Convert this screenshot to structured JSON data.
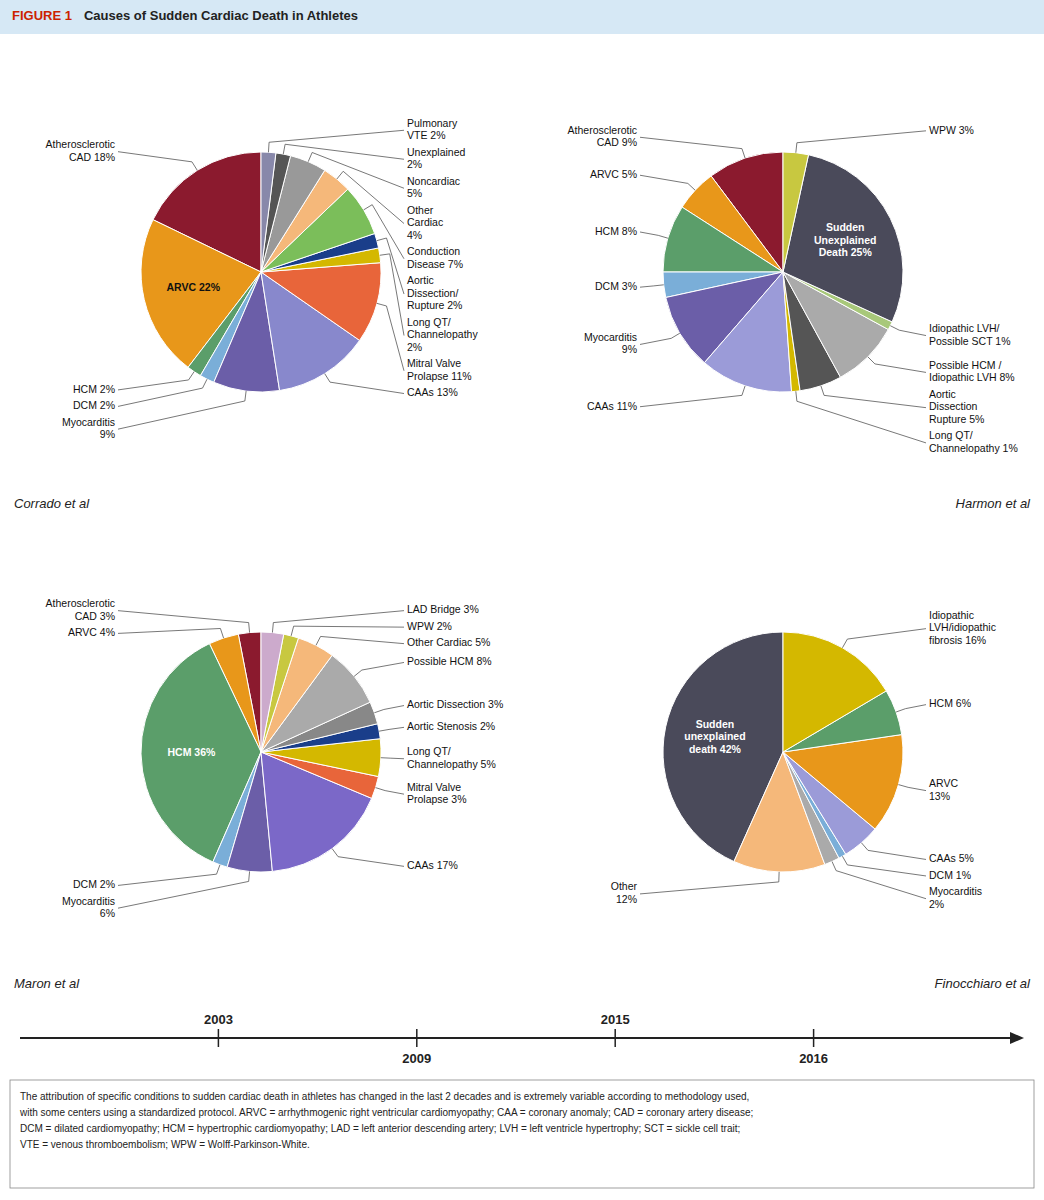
{
  "title": "FIGURE 1",
  "subtitle": "Causes of Sudden Cardiac Death in Athletes",
  "annotations": [
    "The attribution of specific conditions to sudden cardiac death in athletes has changed in the last 2 decades and is extremely variable according to methodology used,\nwith some centers using a standardized protocol. ARVC = arrhythmogenic right ventricular cardiomyopathy; CAA = coronary anomaly; CAD = coronary artery disease;\nDCM = dilated cardiomyopathy; HCM = hypertrophic cardiomyopathy; LAD = left anterior descending artery; LVH = left ventricle hypertrophy; SCT = sickle cell trait;\nVTE = venous thromboembolism; WPW = Wolff-Parkinson-White."
  ],
  "chart_data": [
    {
      "type": "pie",
      "title": "Corrado et al",
      "annotations": [
        "2003"
      ],
      "data_labels": true,
      "values": [
        18,
        22,
        2,
        2,
        9,
        13,
        11,
        2,
        2,
        7,
        4,
        5,
        2,
        2
      ],
      "value_labels": [
        "Atherosclerotic\nCAD 18%",
        "ARVC 22%",
        "HCM 2%",
        "DCM 2%",
        "Myocarditis\n9%",
        "CAAs 13%",
        "Mitral Valve\nProlapse 11%",
        "Long QT/\nChannelopathy\n2%",
        "Aortic\nDissection/\nRupture 2%",
        "Conduction\nDisease 7%",
        "Other\nCardiac\n4%",
        "Noncardiac\n5%",
        "Unexplained\n2%",
        "Pulmonary\nVTE 2%"
      ],
      "colors": [
        "#8B1A2E",
        "#E8971A",
        "#5B9E6A",
        "#7AAED8",
        "#6B5EA8",
        "#8888CC",
        "#E8653A",
        "#D4B800",
        "#1A3E8A",
        "#7BBE5A",
        "#F5B87A",
        "#999999",
        "#555555",
        "#8888AA"
      ]
    },
    {
      "type": "pie",
      "title": "Harmon et al",
      "annotations": [
        "2015"
      ],
      "data_labels": true,
      "values": [
        9,
        5,
        8,
        3,
        9,
        11,
        1,
        5,
        8,
        1,
        25,
        3
      ],
      "value_labels": [
        "Atherosclerotic\nCAD 9%",
        "ARVC 5%",
        "HCM 8%",
        "DCM 3%",
        "Myocarditis\n9%",
        "CAAs 11%",
        "Long QT/\nChannelopathy 1%",
        "Aortic\nDissection\nRupture 5%",
        "Possible HCM /\nIdiopathic LVH 8%",
        "Idiopathic LVH/\nPossible SCT 1%",
        "Sudden\nUnexplained\nDeath 25%",
        "WPW 3%"
      ],
      "colors": [
        "#8B1A2E",
        "#E8971A",
        "#5B9E6A",
        "#7AAED8",
        "#6B5EA8",
        "#9B9BD8",
        "#D4B800",
        "#555555",
        "#AAAAAA",
        "#A8C87A",
        "#4A4A5A",
        "#C8C840"
      ]
    },
    {
      "type": "pie",
      "title": "Maron et al",
      "annotations": [
        "2009"
      ],
      "data_labels": true,
      "values": [
        3,
        4,
        36,
        2,
        6,
        17,
        3,
        5,
        2,
        3,
        8,
        5,
        2,
        3
      ],
      "value_labels": [
        "Atherosclerotic\nCAD 3%",
        "ARVC 4%",
        "HCM 36%",
        "DCM 2%",
        "Myocarditis\n6%",
        "CAAs 17%",
        "Mitral Valve\nProlapse 3%",
        "Long QT/\nChannelopathy 5%",
        "Aortic Stenosis 2%",
        "Aortic Dissection 3%",
        "Possible HCM 8%",
        "Other Cardiac 5%",
        "WPW 2%",
        "LAD Bridge 3%"
      ],
      "colors": [
        "#8B1A2E",
        "#E8971A",
        "#5B9E6A",
        "#7AAED8",
        "#6B5EA8",
        "#7B68C8",
        "#E8653A",
        "#D4B800",
        "#1A3E8A",
        "#888888",
        "#AAAAAA",
        "#F5B87A",
        "#C8C840",
        "#CCAACC"
      ]
    },
    {
      "type": "pie",
      "title": "Finocchiaro et al",
      "annotations": [
        "2016"
      ],
      "data_labels": true,
      "values": [
        42,
        12,
        2,
        1,
        5,
        13,
        6,
        16
      ],
      "value_labels": [
        "Sudden\nunexplained\ndeath 42%",
        "Other\n12%",
        "Myocarditis\n2%",
        "DCM 1%",
        "CAAs 5%",
        "ARVC\n13%",
        "HCM 6%",
        "Idiopathic\nLVH/idiopathic\nfibrosis 16%"
      ],
      "colors": [
        "#4A4A5A",
        "#F5B87A",
        "#AAAAAA",
        "#7AAED8",
        "#9B9BD8",
        "#E8971A",
        "#5B9E6A",
        "#D4B800"
      ]
    }
  ]
}
